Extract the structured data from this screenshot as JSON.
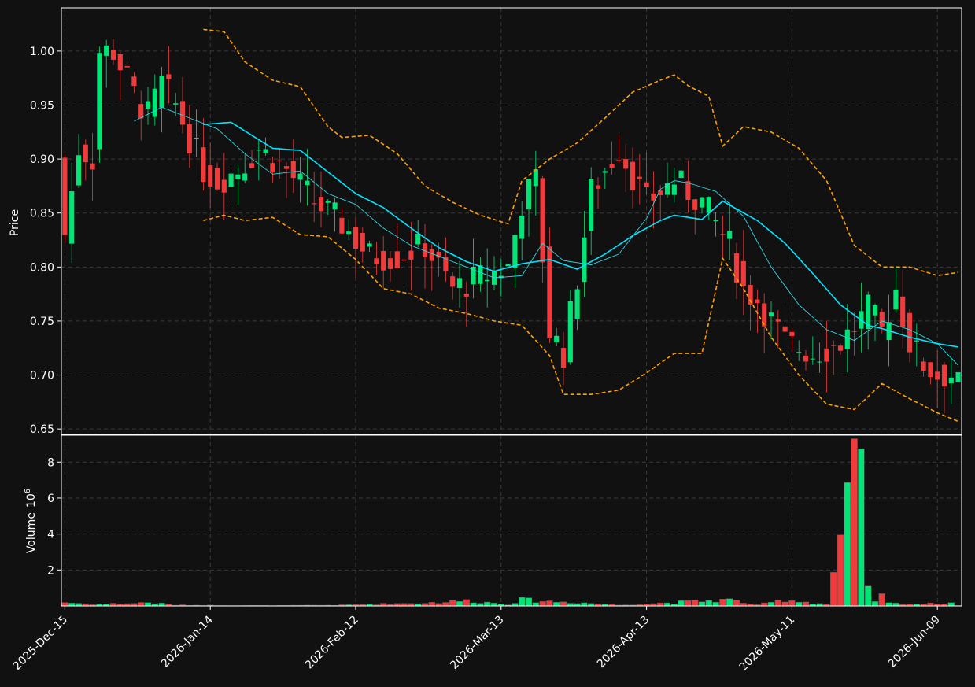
{
  "colors": {
    "background": "#111111",
    "up": "#00e676",
    "down": "#ef3b3b",
    "ma_fast": "#30d5e0",
    "ma_slow": "#00e5ff",
    "bands": "#ffa000",
    "grid": "#3a3a3a",
    "axis": "#ffffff"
  },
  "chart_data": {
    "type": "candlestick",
    "title": "",
    "price_panel": {
      "ylabel": "Price",
      "ylim": [
        0.645,
        1.04
      ],
      "yticks": [
        "0.65",
        "0.70",
        "0.75",
        "0.80",
        "0.85",
        "0.90",
        "0.95",
        "1.00"
      ],
      "grid": true
    },
    "volume_panel": {
      "ylabel": "Volume",
      "scale_label": "10",
      "scale_exponent": "6",
      "ylim": [
        0,
        9.5
      ],
      "yticks": [
        "2",
        "4",
        "6",
        "8"
      ],
      "grid": true
    },
    "x_ticks": [
      {
        "index": 0,
        "label": "2025-Dec-15"
      },
      {
        "index": 21,
        "label": "2026-Jan-14"
      },
      {
        "index": 42,
        "label": "2026-Feb-12"
      },
      {
        "index": 63,
        "label": "2026-Mar-13"
      },
      {
        "index": 84,
        "label": "2026-Apr-13"
      },
      {
        "index": 105,
        "label": "2026-May-11"
      },
      {
        "index": 126,
        "label": "2026-Jun-09"
      }
    ],
    "n_bars": 130,
    "anchors": {
      "close": [
        [
          0,
          0.83
        ],
        [
          2,
          0.91
        ],
        [
          4,
          0.9
        ],
        [
          5,
          1.0
        ],
        [
          7,
          1.0
        ],
        [
          10,
          0.96
        ],
        [
          12,
          0.94
        ],
        [
          14,
          0.97
        ],
        [
          16,
          0.95
        ],
        [
          20,
          0.89
        ],
        [
          22,
          0.88
        ],
        [
          25,
          0.89
        ],
        [
          28,
          0.91
        ],
        [
          32,
          0.89
        ],
        [
          36,
          0.86
        ],
        [
          40,
          0.84
        ],
        [
          44,
          0.81
        ],
        [
          48,
          0.81
        ],
        [
          52,
          0.82
        ],
        [
          56,
          0.78
        ],
        [
          60,
          0.79
        ],
        [
          64,
          0.8
        ],
        [
          66,
          0.86
        ],
        [
          68,
          0.88
        ],
        [
          70,
          0.74
        ],
        [
          72,
          0.72
        ],
        [
          74,
          0.79
        ],
        [
          76,
          0.87
        ],
        [
          80,
          0.91
        ],
        [
          84,
          0.86
        ],
        [
          88,
          0.88
        ],
        [
          92,
          0.86
        ],
        [
          96,
          0.82
        ],
        [
          98,
          0.78
        ],
        [
          100,
          0.77
        ],
        [
          104,
          0.73
        ],
        [
          108,
          0.72
        ],
        [
          112,
          0.73
        ],
        [
          116,
          0.76
        ],
        [
          118,
          0.74
        ],
        [
          120,
          0.78
        ],
        [
          122,
          0.73
        ],
        [
          124,
          0.71
        ],
        [
          126,
          0.7
        ],
        [
          128,
          0.7
        ],
        [
          129,
          0.69
        ]
      ],
      "ma_fast": [
        [
          10,
          0.935
        ],
        [
          14,
          0.948
        ],
        [
          18,
          0.938
        ],
        [
          22,
          0.928
        ],
        [
          26,
          0.905
        ],
        [
          30,
          0.886
        ],
        [
          34,
          0.889
        ],
        [
          38,
          0.868
        ],
        [
          42,
          0.858
        ],
        [
          46,
          0.836
        ],
        [
          50,
          0.82
        ],
        [
          54,
          0.81
        ],
        [
          58,
          0.8
        ],
        [
          62,
          0.79
        ],
        [
          66,
          0.792
        ],
        [
          69,
          0.822
        ],
        [
          72,
          0.806
        ],
        [
          76,
          0.802
        ],
        [
          80,
          0.812
        ],
        [
          84,
          0.845
        ],
        [
          86,
          0.872
        ],
        [
          88,
          0.88
        ],
        [
          90,
          0.878
        ],
        [
          94,
          0.87
        ],
        [
          98,
          0.847
        ],
        [
          102,
          0.8
        ],
        [
          106,
          0.765
        ],
        [
          110,
          0.742
        ],
        [
          114,
          0.732
        ],
        [
          118,
          0.75
        ],
        [
          122,
          0.742
        ],
        [
          126,
          0.729
        ],
        [
          129,
          0.709
        ]
      ],
      "ma_slow": [
        [
          20,
          0.932
        ],
        [
          24,
          0.934
        ],
        [
          30,
          0.91
        ],
        [
          34,
          0.908
        ],
        [
          38,
          0.888
        ],
        [
          42,
          0.868
        ],
        [
          46,
          0.855
        ],
        [
          50,
          0.836
        ],
        [
          54,
          0.818
        ],
        [
          58,
          0.805
        ],
        [
          62,
          0.796
        ],
        [
          66,
          0.803
        ],
        [
          70,
          0.807
        ],
        [
          74,
          0.798
        ],
        [
          78,
          0.812
        ],
        [
          82,
          0.829
        ],
        [
          86,
          0.843
        ],
        [
          88,
          0.848
        ],
        [
          92,
          0.844
        ],
        [
          95,
          0.861
        ],
        [
          100,
          0.843
        ],
        [
          104,
          0.822
        ],
        [
          108,
          0.794
        ],
        [
          112,
          0.765
        ],
        [
          116,
          0.746
        ],
        [
          118,
          0.743
        ],
        [
          122,
          0.735
        ],
        [
          126,
          0.729
        ],
        [
          129,
          0.726
        ]
      ],
      "band_upper": [
        [
          20,
          1.02
        ],
        [
          23,
          1.018
        ],
        [
          26,
          0.99
        ],
        [
          30,
          0.973
        ],
        [
          34,
          0.967
        ],
        [
          38,
          0.93
        ],
        [
          40,
          0.92
        ],
        [
          44,
          0.922
        ],
        [
          48,
          0.905
        ],
        [
          52,
          0.875
        ],
        [
          56,
          0.86
        ],
        [
          60,
          0.848
        ],
        [
          64,
          0.84
        ],
        [
          66,
          0.88
        ],
        [
          70,
          0.9
        ],
        [
          74,
          0.915
        ],
        [
          78,
          0.938
        ],
        [
          82,
          0.962
        ],
        [
          86,
          0.973
        ],
        [
          88,
          0.978
        ],
        [
          90,
          0.968
        ],
        [
          93,
          0.958
        ],
        [
          95,
          0.912
        ],
        [
          98,
          0.93
        ],
        [
          102,
          0.925
        ],
        [
          106,
          0.91
        ],
        [
          110,
          0.88
        ],
        [
          114,
          0.82
        ],
        [
          118,
          0.8
        ],
        [
          122,
          0.8
        ],
        [
          126,
          0.792
        ],
        [
          129,
          0.795
        ]
      ],
      "band_lower": [
        [
          20,
          0.843
        ],
        [
          23,
          0.848
        ],
        [
          26,
          0.843
        ],
        [
          30,
          0.846
        ],
        [
          34,
          0.83
        ],
        [
          38,
          0.828
        ],
        [
          42,
          0.807
        ],
        [
          46,
          0.78
        ],
        [
          50,
          0.775
        ],
        [
          54,
          0.762
        ],
        [
          58,
          0.757
        ],
        [
          62,
          0.75
        ],
        [
          66,
          0.746
        ],
        [
          70,
          0.718
        ],
        [
          72,
          0.682
        ],
        [
          76,
          0.682
        ],
        [
          80,
          0.686
        ],
        [
          84,
          0.702
        ],
        [
          88,
          0.72
        ],
        [
          92,
          0.72
        ],
        [
          95,
          0.808
        ],
        [
          98,
          0.78
        ],
        [
          102,
          0.735
        ],
        [
          106,
          0.7
        ],
        [
          110,
          0.673
        ],
        [
          114,
          0.668
        ],
        [
          118,
          0.692
        ],
        [
          122,
          0.678
        ],
        [
          126,
          0.665
        ],
        [
          129,
          0.657
        ]
      ],
      "volume": [
        [
          0,
          0.2
        ],
        [
          4,
          0.1
        ],
        [
          10,
          0.15
        ],
        [
          12,
          0.2
        ],
        [
          16,
          0.05
        ],
        [
          30,
          0.02
        ],
        [
          40,
          0.05
        ],
        [
          54,
          0.2
        ],
        [
          58,
          0.3
        ],
        [
          64,
          0.1
        ],
        [
          66,
          0.35
        ],
        [
          70,
          0.25
        ],
        [
          74,
          0.2
        ],
        [
          80,
          0.05
        ],
        [
          96,
          0.35
        ],
        [
          100,
          0.05
        ],
        [
          104,
          0.35
        ],
        [
          110,
          0.1
        ],
        [
          115,
          8.75
        ],
        [
          116,
          0.8
        ],
        [
          117,
          0.3
        ],
        [
          118,
          0.55
        ],
        [
          119,
          0.15
        ],
        [
          124,
          0.1
        ],
        [
          128,
          0.2
        ]
      ]
    }
  }
}
